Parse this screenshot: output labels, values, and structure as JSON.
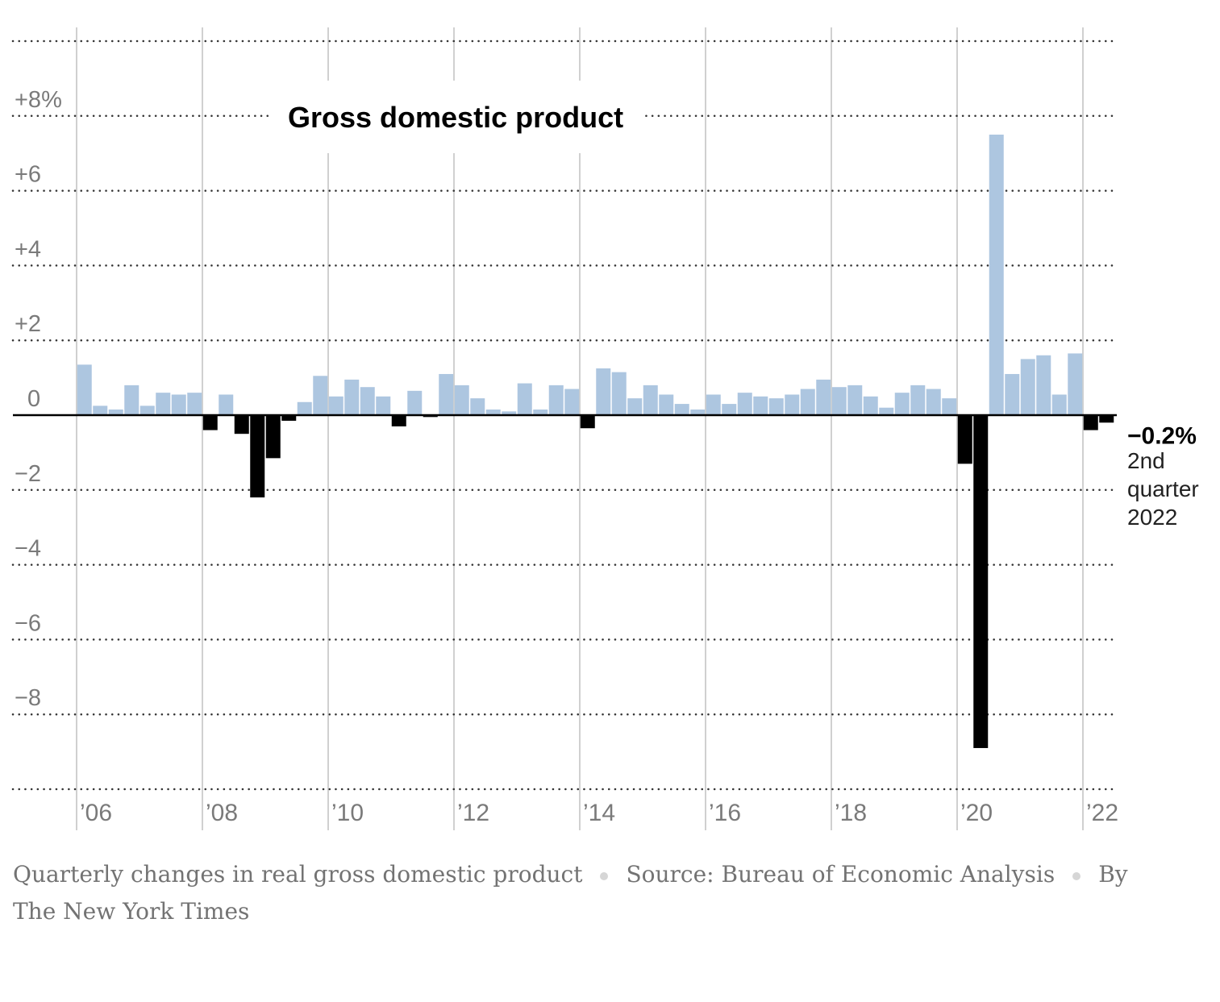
{
  "chart_data": {
    "type": "bar",
    "title": "Gross domestic product",
    "xlabel": "",
    "ylabel": "",
    "ylim": [
      -10,
      10
    ],
    "grid": true,
    "y_ticks": [
      {
        "value": 8,
        "label": "+8%"
      },
      {
        "value": 6,
        "label": "+6"
      },
      {
        "value": 4,
        "label": "+4"
      },
      {
        "value": 2,
        "label": "+2"
      },
      {
        "value": 0,
        "label": "0"
      },
      {
        "value": -2,
        "label": "−2"
      },
      {
        "value": -4,
        "label": "−4"
      },
      {
        "value": -6,
        "label": "−6"
      },
      {
        "value": -8,
        "label": "−8"
      }
    ],
    "gridline_values": [
      10,
      8,
      6,
      4,
      2,
      -2,
      -4,
      -6,
      -8,
      -10
    ],
    "x_ticks": [
      {
        "index": 0,
        "label": " 06"
      },
      {
        "index": 8,
        "label": " 08"
      },
      {
        "index": 16,
        "label": " 10"
      },
      {
        "index": 24,
        "label": " 12"
      },
      {
        "index": 32,
        "label": " 14"
      },
      {
        "index": 40,
        "label": " 16"
      },
      {
        "index": 48,
        "label": " 18"
      },
      {
        "index": 56,
        "label": " 20"
      },
      {
        "index": 64,
        "label": " 22"
      }
    ],
    "categories": [
      "2006 Q1",
      "2006 Q2",
      "2006 Q3",
      "2006 Q4",
      "2007 Q1",
      "2007 Q2",
      "2007 Q3",
      "2007 Q4",
      "2008 Q1",
      "2008 Q2",
      "2008 Q3",
      "2008 Q4",
      "2009 Q1",
      "2009 Q2",
      "2009 Q3",
      "2009 Q4",
      "2010 Q1",
      "2010 Q2",
      "2010 Q3",
      "2010 Q4",
      "2011 Q1",
      "2011 Q2",
      "2011 Q3",
      "2011 Q4",
      "2012 Q1",
      "2012 Q2",
      "2012 Q3",
      "2012 Q4",
      "2013 Q1",
      "2013 Q2",
      "2013 Q3",
      "2013 Q4",
      "2014 Q1",
      "2014 Q2",
      "2014 Q3",
      "2014 Q4",
      "2015 Q1",
      "2015 Q2",
      "2015 Q3",
      "2015 Q4",
      "2016 Q1",
      "2016 Q2",
      "2016 Q3",
      "2016 Q4",
      "2017 Q1",
      "2017 Q2",
      "2017 Q3",
      "2017 Q4",
      "2018 Q1",
      "2018 Q2",
      "2018 Q3",
      "2018 Q4",
      "2019 Q1",
      "2019 Q2",
      "2019 Q3",
      "2019 Q4",
      "2020 Q1",
      "2020 Q2",
      "2020 Q3",
      "2020 Q4",
      "2021 Q1",
      "2021 Q2",
      "2021 Q3",
      "2021 Q4",
      "2022 Q1",
      "2022 Q2"
    ],
    "values": [
      1.35,
      0.25,
      0.15,
      0.8,
      0.25,
      0.6,
      0.55,
      0.6,
      -0.4,
      0.55,
      -0.5,
      -2.2,
      -1.15,
      -0.15,
      0.35,
      1.05,
      0.5,
      0.95,
      0.75,
      0.5,
      -0.3,
      0.65,
      -0.05,
      1.1,
      0.8,
      0.45,
      0.15,
      0.1,
      0.85,
      0.15,
      0.8,
      0.7,
      -0.35,
      1.25,
      1.15,
      0.45,
      0.8,
      0.55,
      0.3,
      0.15,
      0.55,
      0.3,
      0.6,
      0.5,
      0.45,
      0.55,
      0.7,
      0.95,
      0.75,
      0.8,
      0.5,
      0.2,
      0.6,
      0.8,
      0.7,
      0.45,
      -1.3,
      -8.9,
      7.5,
      1.1,
      1.5,
      1.6,
      0.55,
      1.65,
      -0.4,
      -0.2
    ],
    "colors": {
      "positive": "#adc6e0",
      "negative": "#000000"
    },
    "annotation": {
      "value": "−0.2%",
      "lines": [
        "2nd",
        "quarter",
        "2022"
      ]
    }
  },
  "footer": {
    "description": "Quarterly changes in real gross domestic product",
    "source": "Source: Bureau of Economic Analysis",
    "byline_prefix": "By",
    "byline_org": "The New York Times"
  }
}
